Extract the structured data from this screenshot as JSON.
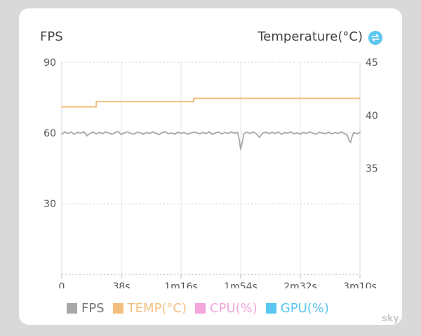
{
  "header": {
    "left_title": "FPS",
    "right_title": "Temperature(°C)"
  },
  "watermark": "sky",
  "colors": {
    "fps": "#a8a8a8",
    "temp": "#f2bf7e",
    "cpu": "#f3a6dc",
    "gpu": "#5bc6ef",
    "swap_icon": "#5bc6ef"
  },
  "chart_data": {
    "type": "line",
    "x_unit": "seconds",
    "xlim": [
      0,
      190
    ],
    "x_ticks": [
      0,
      38,
      76,
      114,
      152,
      190
    ],
    "x_tick_labels": [
      "0",
      "38s",
      "1m16s",
      "1m54s",
      "2m32s",
      "3m10s"
    ],
    "y_left": {
      "label": "FPS",
      "lim": [
        0,
        90
      ],
      "ticks": [
        30,
        60,
        90
      ],
      "tick_labels": [
        "30",
        "60",
        "90"
      ]
    },
    "y_right": {
      "label": "Temperature(°C)",
      "lim": [
        25,
        45
      ],
      "ticks": [
        35,
        40,
        45
      ],
      "tick_labels": [
        "35",
        "40",
        "45"
      ]
    },
    "legend": [
      {
        "name": "FPS",
        "color_key": "fps"
      },
      {
        "name": "TEMP(°C)",
        "color_key": "temp"
      },
      {
        "name": "CPU(%)",
        "color_key": "cpu"
      },
      {
        "name": "GPU(%)",
        "color_key": "gpu"
      }
    ],
    "series": [
      {
        "name": "TEMP(°C)",
        "axis": "right",
        "color_key": "temp",
        "step": true,
        "x": [
          0,
          22,
          22,
          84,
          84,
          190
        ],
        "y": [
          40.8,
          40.8,
          41.3,
          41.3,
          41.6,
          41.6
        ]
      },
      {
        "name": "FPS",
        "axis": "left",
        "color_key": "fps",
        "x": [
          0,
          2,
          4,
          6,
          8,
          10,
          12,
          14,
          16,
          18,
          20,
          22,
          24,
          26,
          28,
          30,
          32,
          34,
          36,
          38,
          40,
          42,
          44,
          46,
          48,
          50,
          52,
          54,
          56,
          58,
          60,
          62,
          64,
          66,
          68,
          70,
          72,
          74,
          76,
          78,
          80,
          82,
          84,
          86,
          88,
          90,
          92,
          94,
          96,
          98,
          100,
          102,
          104,
          106,
          108,
          110,
          112,
          113,
          114,
          115,
          116,
          118,
          120,
          122,
          124,
          126,
          128,
          130,
          132,
          134,
          136,
          138,
          140,
          142,
          144,
          146,
          148,
          150,
          152,
          154,
          156,
          158,
          160,
          162,
          164,
          166,
          168,
          170,
          172,
          174,
          176,
          178,
          180,
          182,
          183,
          184,
          185,
          186,
          188,
          190
        ],
        "y": [
          59.5,
          60.5,
          59.8,
          60.4,
          59.5,
          60.3,
          59.9,
          60.6,
          58.8,
          59.8,
          60.4,
          59.6,
          60.3,
          59.7,
          60.5,
          60.0,
          59.4,
          60.2,
          60.6,
          59.3,
          60.1,
          60.5,
          59.8,
          59.5,
          60.4,
          60.1,
          59.4,
          60.3,
          59.8,
          60.5,
          59.9,
          59.3,
          60.2,
          60.5,
          59.7,
          60.0,
          59.5,
          60.4,
          59.8,
          60.3,
          59.5,
          59.9,
          60.4,
          60.1,
          59.6,
          60.3,
          59.7,
          60.5,
          59.4,
          60.1,
          60.4,
          59.6,
          60.2,
          59.8,
          60.5,
          59.9,
          60.2,
          57.5,
          53.0,
          56.0,
          59.7,
          60.4,
          59.8,
          60.5,
          59.6,
          58.2,
          59.9,
          60.4,
          59.7,
          60.3,
          59.8,
          60.5,
          59.4,
          60.2,
          59.9,
          60.5,
          59.6,
          60.1,
          59.5,
          60.3,
          59.8,
          60.5,
          59.9,
          59.5,
          60.3,
          60.0,
          59.7,
          60.4,
          59.6,
          60.2,
          59.8,
          60.4,
          59.9,
          59.0,
          57.0,
          56.0,
          58.5,
          60.3,
          59.6,
          60.2
        ]
      }
    ]
  }
}
